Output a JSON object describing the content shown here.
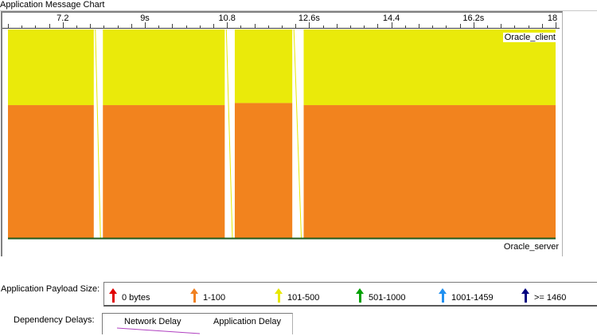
{
  "window": {
    "title": "Application Message Chart"
  },
  "ruler": {
    "labels": [
      "7.2",
      "9s",
      "10.8",
      "12.6s",
      "14.4",
      "16.2s",
      "18"
    ],
    "times": [
      7.2,
      9.0,
      10.8,
      12.6,
      14.4,
      16.2,
      18.0
    ],
    "range": [
      6.0,
      18.0
    ]
  },
  "lanes": {
    "top": "Oracle_client",
    "bottom": "Oracle_server"
  },
  "messages": {
    "segments": [
      {
        "start": 6.0,
        "end": 7.88,
        "split": 0.36
      },
      {
        "start": 8.08,
        "end": 10.75,
        "split": 0.36
      },
      {
        "start": 10.97,
        "end": 12.23,
        "split": 0.35
      },
      {
        "start": 12.48,
        "end": 18.0,
        "split": 0.36
      }
    ],
    "colors": {
      "upper": "#eaea0a",
      "lower": "#f2831e",
      "baseline": "#1e5a1e",
      "arrow": "#e8e800"
    }
  },
  "legend": {
    "payload_title": "Application Payload Size:",
    "payload_items": [
      {
        "label": "0 bytes",
        "color": "#e00000"
      },
      {
        "label": "1-100",
        "color": "#f08020"
      },
      {
        "label": "101-500",
        "color": "#e8e800"
      },
      {
        "label": "501-1000",
        "color": "#00a000"
      },
      {
        "label": "1001-1459",
        "color": "#2090f0"
      },
      {
        "label": ">= 1460",
        "color": "#000080"
      }
    ],
    "dependency_title": "Dependency Delays:",
    "network_delay_label": "Network Delay",
    "network_delay_color": "#b040c0",
    "application_delay_label": "Application Delay"
  }
}
